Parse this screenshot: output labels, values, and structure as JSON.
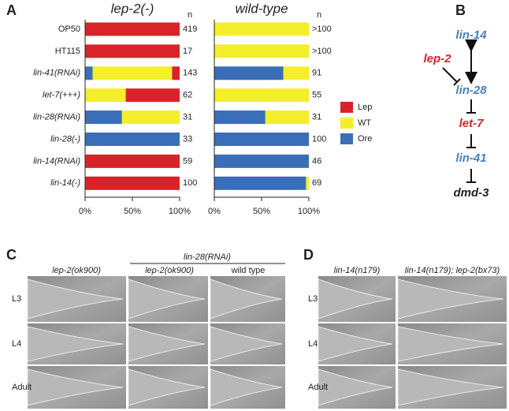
{
  "panel_labels": [
    "A",
    "B",
    "C",
    "D"
  ],
  "chart_data": [
    {
      "type": "stacked-barh",
      "title": "lep-2(-)",
      "n_header": "n",
      "categories": [
        "OP50",
        "HT115",
        "lin-41(RNAi)",
        "let-7(+++)",
        "lin-28(RNAi)",
        "lin-28(-)",
        "lin-14(RNAi)",
        "lin-14(-)"
      ],
      "n": [
        419,
        17,
        143,
        62,
        31,
        33,
        59,
        100
      ],
      "series": [
        {
          "name": "Lep",
          "color": "#d9232a",
          "values": [
            100,
            100,
            8,
            57,
            0,
            0,
            100,
            100
          ]
        },
        {
          "name": "WT",
          "color": "#f5ee2a",
          "values": [
            0,
            0,
            84,
            43,
            61,
            0,
            0,
            0
          ]
        },
        {
          "name": "Ore",
          "color": "#3a6fb8",
          "values": [
            0,
            0,
            8,
            0,
            39,
            100,
            0,
            0
          ]
        }
      ],
      "xlim": [
        0,
        100
      ],
      "xticks": [
        {
          "value": 0,
          "label": "0%"
        },
        {
          "value": 50,
          "label": "50%"
        },
        {
          "value": 100,
          "label": "100%"
        }
      ],
      "legend": "right"
    },
    {
      "type": "stacked-barh",
      "title": "wild-type",
      "n_header": "n",
      "n": [
        ">100",
        ">100",
        91,
        55,
        31,
        100,
        46,
        69
      ],
      "series": [
        {
          "color": "#d9232a",
          "values": [
            0,
            0,
            0,
            0,
            0,
            0,
            0,
            0
          ]
        },
        {
          "color": "#f5ee2a",
          "values": [
            100,
            100,
            27,
            100,
            46,
            0,
            0,
            3
          ]
        },
        {
          "color": "#3a6fb8",
          "values": [
            0,
            0,
            73,
            0,
            54,
            100,
            100,
            97
          ]
        }
      ],
      "xlim": [
        0,
        100
      ],
      "xticks": [
        {
          "value": 0,
          "label": "0%"
        },
        {
          "value": 50,
          "label": "50%"
        },
        {
          "value": 100,
          "label": "100%"
        }
      ]
    }
  ],
  "pathway": {
    "nodes": [
      {
        "label": "lin-14",
        "color": "#4a7fc1"
      },
      {
        "label": "lep-2",
        "color": "#d9232a"
      },
      {
        "label": "lin-28",
        "color": "#4a7fc1"
      },
      {
        "label": "let-7",
        "color": "#d9232a"
      },
      {
        "label": "lin-41",
        "color": "#4a7fc1"
      },
      {
        "label": "dmd-3",
        "color": "#222222"
      }
    ]
  },
  "panel_c": {
    "group_header": "lin-28(RNAi)",
    "columns": [
      "lep-2(ok900)",
      "lep-2(ok900)",
      "wild type"
    ],
    "rows": [
      "L3",
      "L4",
      "Adult"
    ]
  },
  "panel_d": {
    "columns": [
      "lin-14(n179)",
      "lin-14(n179); lep-2(bx73)"
    ],
    "rows": [
      "L3",
      "L4",
      "Adult"
    ]
  }
}
